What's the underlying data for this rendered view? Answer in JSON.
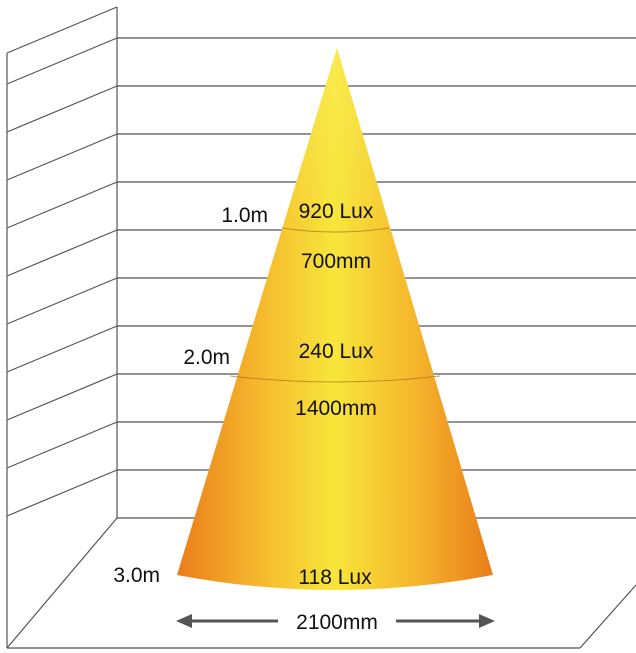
{
  "cone": {
    "levels": [
      {
        "distance": "1.0m",
        "lux": "920 Lux",
        "diameter": "700mm"
      },
      {
        "distance": "2.0m",
        "lux": "240 Lux",
        "diameter": "1400mm"
      },
      {
        "distance": "3.0m",
        "lux": "118 Lux",
        "diameter": "2100mm"
      }
    ]
  },
  "colors": {
    "cone_edge": "#ef8f1d",
    "cone_center": "#f7e63a",
    "cone_tip": "#f9ed5c",
    "grid_line": "#555555",
    "arrow": "#555555",
    "text": "#111111"
  }
}
